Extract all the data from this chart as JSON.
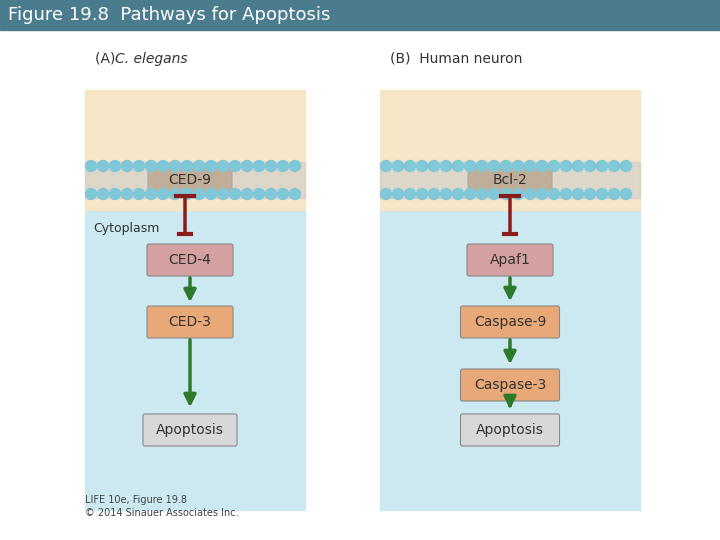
{
  "title": "Figure 19.8  Pathways for Apoptosis",
  "title_bg": "#4a7c8e",
  "title_color": "white",
  "title_fontsize": 13,
  "fig_bg": "white",
  "panel_A_label": "(A)  C. elegans",
  "panel_B_label": "(B)  Human neuron",
  "cytoplasm_label": "Cytoplasm",
  "panel_A_italic": "C. elegans",
  "panel_A_prefix": "(A)  ",
  "panel_B_prefix": "(B)  Human neuron",
  "membrane_top_color": "#f5e6c8",
  "membrane_stripe_color": "#c8c8c8",
  "membrane_ball_color": "#80c8d8",
  "cytoplasm_bg": "#cce8f0",
  "box_ced9_color": "#b8956a",
  "box_bcl2_color": "#b8956a",
  "box_ced4_color": "#d4a0a0",
  "box_apaf1_color": "#d4a0a0",
  "box_ced3_color": "#e8a878",
  "box_casp9_color": "#e8a878",
  "box_casp3_color": "#e8a878",
  "box_apoptosis_color": "#d8d8d8",
  "box_ced9_text": "CED-9",
  "box_bcl2_text": "Bcl-2",
  "box_ced4_text": "CED-4",
  "box_apaf1_text": "Apaf1",
  "box_ced3_text": "CED-3",
  "box_casp9_text": "Caspase-9",
  "box_casp3_text": "Caspase-3",
  "box_apoptosis_A_text": "Apoptosis",
  "box_apoptosis_B_text": "Apoptosis",
  "inhibit_arrow_color": "#8b1a1a",
  "activate_arrow_color": "#2d7a2d",
  "caption": "LIFE 10e, Figure 19.8\n© 2014 Sinauer Associates Inc.",
  "caption_fontsize": 7
}
